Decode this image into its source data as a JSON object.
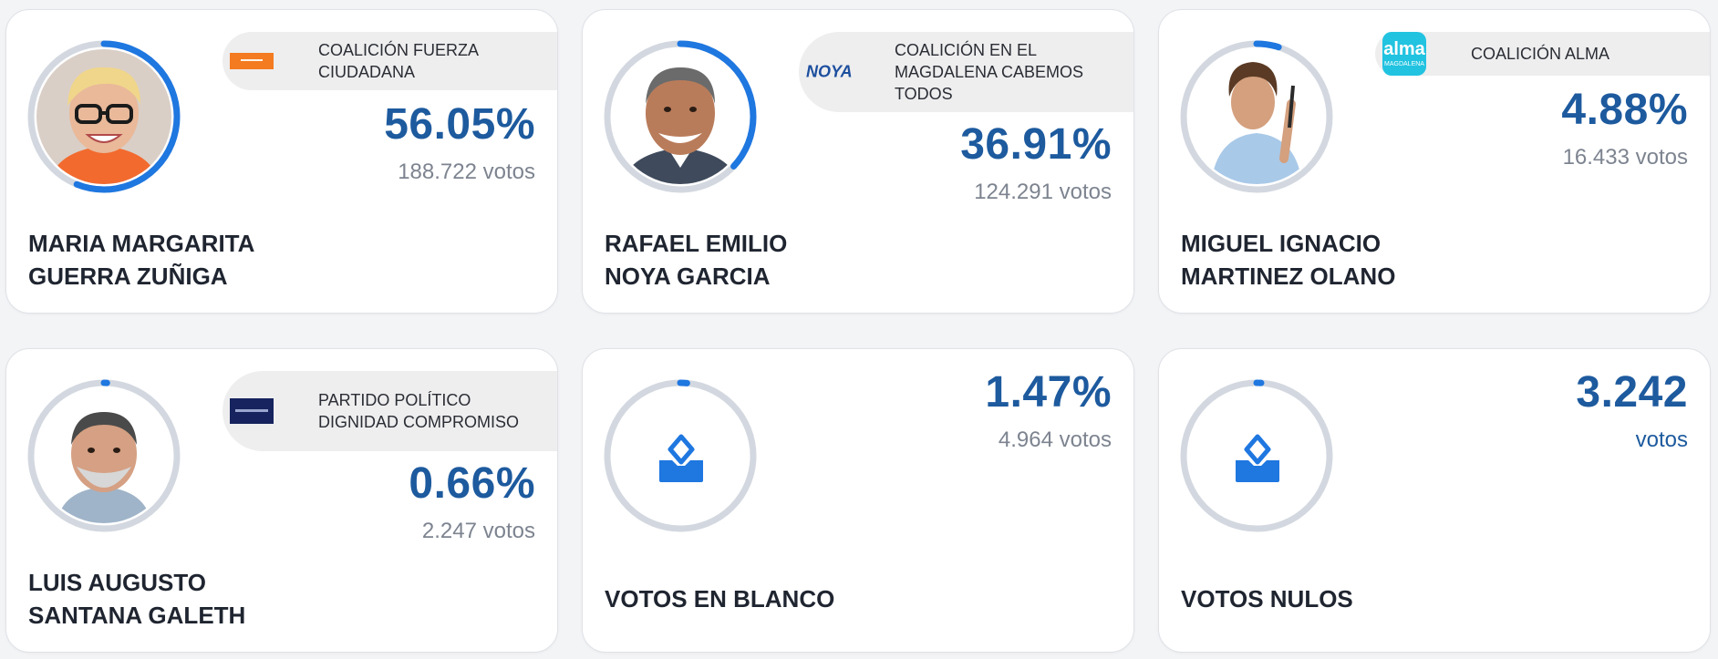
{
  "accent_color": "#1f77e0",
  "ring_track_color": "#d3d8e0",
  "percent_color": "#1d5a9e",
  "candidates": [
    {
      "name_line1": "MARIA MARGARITA",
      "name_line2": "GUERRA ZUÑIGA",
      "party": "COALICIÓN FUERZA CIUDADANA",
      "percent": "56.05%",
      "share": 0.5605,
      "votes": "188.722 votos",
      "logo": "fuerza-ciudadana-logo"
    },
    {
      "name_line1": "RAFAEL EMILIO",
      "name_line2": "NOYA GARCIA",
      "party": "COALICIÓN EN EL MAGDALENA CABEMOS TODOS",
      "percent": "36.91%",
      "share": 0.3691,
      "votes": "124.291 votos",
      "logo_text": "NOYA"
    },
    {
      "name_line1": "MIGUEL IGNACIO",
      "name_line2": "MARTINEZ OLANO",
      "party": "COALICIÓN ALMA",
      "percent": "4.88%",
      "share": 0.0488,
      "votes": "16.433 votos",
      "logo_text": "alma",
      "logo_subtext": "MAGDALENA"
    },
    {
      "name_line1": "LUIS AUGUSTO",
      "name_line2": "SANTANA GALETH",
      "party": "PARTIDO POLÍTICO DIGNIDAD COMPROMISO",
      "percent": "0.66%",
      "share": 0.0066,
      "votes": "2.247 votos",
      "logo": "dignidad-compromiso-logo"
    }
  ],
  "blank": {
    "label": "VOTOS EN BLANCO",
    "percent": "1.47%",
    "share": 0.0147,
    "votes": "4.964 votos",
    "icon": "ballot-box-icon"
  },
  "null": {
    "label": "VOTOS NULOS",
    "count": "3.242",
    "votes_word": "votos",
    "share": 0.01,
    "icon": "ballot-box-icon"
  }
}
